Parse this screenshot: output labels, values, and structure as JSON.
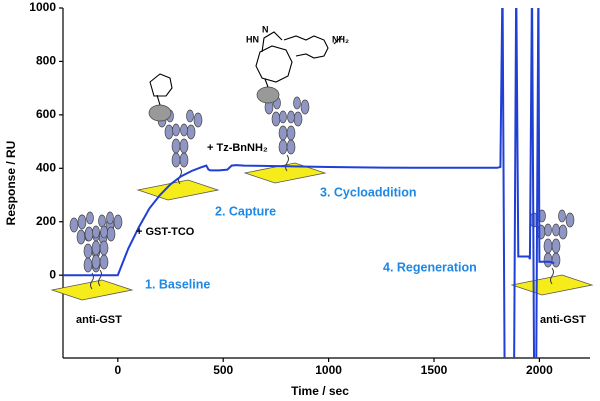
{
  "chart_data": {
    "type": "line",
    "x_label": "Time / sec",
    "y_label": "Response / RU",
    "xlim": [
      -260,
      2240
    ],
    "ylim": [
      -310,
      1000
    ],
    "xticks": [
      0,
      500,
      1000,
      1500,
      2000
    ],
    "yticks": [
      0,
      200,
      400,
      600,
      800,
      1000
    ],
    "x": [
      -260,
      0,
      20,
      50,
      100,
      150,
      200,
      250,
      300,
      350,
      400,
      420,
      430,
      440,
      480,
      520,
      540,
      560,
      600,
      800,
      1000,
      1200,
      1400,
      1600,
      1800,
      1815,
      1825,
      1835,
      1845,
      1870,
      1880,
      1890,
      1900,
      1950,
      1955,
      1965,
      1975,
      1985,
      1995,
      2000,
      2050,
      2070
    ],
    "series": [
      {
        "name": "Response",
        "color": "#1f3fd6",
        "values": [
          0,
          0,
          40,
          100,
          180,
          250,
          300,
          340,
          370,
          390,
          405,
          410,
          395,
          392,
          392,
          395,
          410,
          412,
          410,
          408,
          405,
          403,
          402,
          402,
          402,
          405,
          1100,
          -350,
          -370,
          -370,
          -350,
          1100,
          70,
          70,
          60,
          1100,
          -370,
          -370,
          1100,
          50,
          50,
          45
        ]
      }
    ],
    "annotations": [
      "+ GST-TCO",
      "+ Tz-BnNH₂",
      "1. Baseline",
      "2. Capture",
      "3. Cycloaddition",
      "4. Regeneration",
      "anti-GST",
      "anti-GST",
      "HN",
      "N",
      "NH₂"
    ]
  }
}
